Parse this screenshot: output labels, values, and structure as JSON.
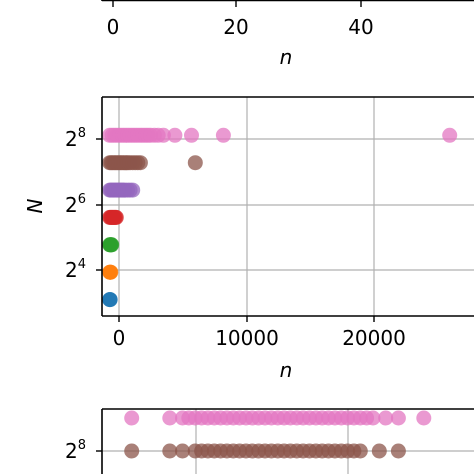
{
  "chart_data": [
    {
      "type": "scatter",
      "title": "",
      "xlabel": "n",
      "ylabel": "",
      "xticks": [
        "0",
        "20",
        "40"
      ],
      "xlim": [
        -1,
        58
      ],
      "grid": true,
      "series": []
    },
    {
      "type": "scatter",
      "title": "",
      "xlabel": "n",
      "ylabel": "N",
      "xlim": [
        -600,
        28500
      ],
      "ylim": [
        2.4,
        10.4
      ],
      "yscale": "log2",
      "xticks": [
        "0",
        "10000",
        "20000"
      ],
      "yticks": [
        {
          "base": "2",
          "exp": "8",
          "value": 8
        },
        {
          "base": "2",
          "exp": "6",
          "value": 6
        },
        {
          "base": "2",
          "exp": "4",
          "value": 4
        }
      ],
      "grid": true,
      "series": [
        {
          "log2N": 3,
          "color": "#1f77b4",
          "x": [
            0,
            20,
            40
          ]
        },
        {
          "log2N": 4,
          "color": "#ff7f0e",
          "x": [
            0,
            30,
            60,
            90
          ]
        },
        {
          "log2N": 5,
          "color": "#2ca02c",
          "x": [
            0,
            40,
            80,
            120,
            160
          ]
        },
        {
          "log2N": 6,
          "color": "#d62728",
          "x": [
            0,
            80,
            150,
            230,
            300,
            380,
            450,
            520
          ]
        },
        {
          "log2N": 7,
          "color": "#9467bd",
          "x": [
            0,
            100,
            200,
            300,
            400,
            500,
            600,
            700,
            800,
            900,
            1000,
            1100,
            1200,
            1400,
            1600,
            1800
          ]
        },
        {
          "log2N": 8,
          "color": "#8c564b",
          "x": [
            0,
            120,
            240,
            360,
            480,
            600,
            720,
            840,
            960,
            1080,
            1200,
            1320,
            1440,
            1600,
            1800,
            2000,
            2200,
            2400,
            6700
          ]
        },
        {
          "log2N": 9,
          "color": "#e377c2",
          "x": [
            0,
            200,
            400,
            600,
            800,
            1000,
            1200,
            1400,
            1600,
            1800,
            2000,
            2200,
            2400,
            2600,
            2800,
            3000,
            3200,
            3500,
            3800,
            4200,
            5100,
            6400,
            8900,
            26600
          ]
        }
      ]
    },
    {
      "type": "scatter",
      "title": "",
      "xlabel": "",
      "ylabel": "",
      "yticks": [
        {
          "base": "2",
          "exp": "8"
        }
      ],
      "grid": true,
      "series": [
        {
          "color": "#e377c2",
          "x": [
            2,
            8,
            10,
            11,
            12,
            13,
            14,
            15,
            16,
            17,
            18,
            19,
            20,
            21,
            22,
            23,
            24,
            25,
            26,
            27,
            28,
            29,
            30,
            31,
            32,
            33,
            34,
            35,
            36,
            37,
            38,
            39,
            40,
            42,
            44,
            48
          ]
        },
        {
          "color": "#8c564b",
          "x": [
            2,
            8,
            10,
            12,
            13,
            14,
            15,
            16,
            17,
            18,
            19,
            20,
            21,
            22,
            23,
            24,
            25,
            26,
            27,
            28,
            29,
            30,
            31,
            32,
            33,
            34,
            35,
            36,
            37,
            38,
            41,
            44
          ]
        }
      ]
    }
  ]
}
